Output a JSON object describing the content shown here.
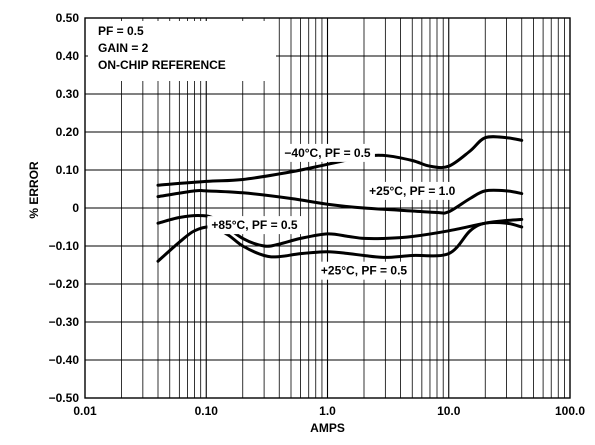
{
  "chart_data": {
    "type": "line",
    "xscale": "log",
    "xlim": [
      0.01,
      100.0
    ],
    "ylim": [
      -0.5,
      0.5
    ],
    "xlabel": "AMPS",
    "ylabel": "% ERROR",
    "grid": true,
    "x_tick_labels": [
      "0.01",
      "0.10",
      "1.0",
      "10.0",
      "100.0"
    ],
    "x_tick_values": [
      0.01,
      0.1,
      1,
      10,
      100
    ],
    "y_tick_labels": [
      "0.50",
      "0.40",
      "0.30",
      "0.20",
      "0.10",
      "0",
      "−0.10",
      "−0.20",
      "−0.30",
      "−0.40",
      "−0.50"
    ],
    "y_tick_values": [
      0.5,
      0.4,
      0.3,
      0.2,
      0.1,
      0,
      -0.1,
      -0.2,
      -0.3,
      -0.4,
      -0.5
    ],
    "notes": [
      "PF = 0.5",
      "GAIN = 2",
      "ON-CHIP REFERENCE"
    ],
    "series": [
      {
        "name": "−40°C, PF = 0.5",
        "x": [
          0.04,
          0.1,
          0.2,
          0.5,
          1.0,
          2.0,
          3.0,
          5.0,
          7.0,
          10.0,
          15.0,
          20.0,
          30.0,
          40.0
        ],
        "y": [
          0.06,
          0.07,
          0.075,
          0.095,
          0.115,
          0.135,
          0.138,
          0.125,
          0.11,
          0.11,
          0.15,
          0.185,
          0.185,
          0.178
        ]
      },
      {
        "name": "+25°C, PF = 1.0",
        "x": [
          0.04,
          0.08,
          0.1,
          0.2,
          0.5,
          1.0,
          2.0,
          5.0,
          8.0,
          10.0,
          15.0,
          20.0,
          30.0,
          40.0
        ],
        "y": [
          0.03,
          0.045,
          0.045,
          0.04,
          0.025,
          0.01,
          0.0,
          -0.008,
          -0.012,
          -0.01,
          0.025,
          0.045,
          0.045,
          0.038
        ]
      },
      {
        "name": "+85°C, PF = 0.5",
        "x": [
          0.04,
          0.06,
          0.09,
          0.12,
          0.2,
          0.3,
          0.4,
          0.6,
          1.0,
          1.5,
          2.0,
          3.0,
          5.0,
          10.0,
          20.0,
          30.0,
          40.0
        ],
        "y": [
          -0.04,
          -0.025,
          -0.02,
          -0.03,
          -0.08,
          -0.1,
          -0.095,
          -0.08,
          -0.068,
          -0.075,
          -0.08,
          -0.08,
          -0.075,
          -0.06,
          -0.04,
          -0.033,
          -0.03
        ]
      },
      {
        "name": "+25°C, PF = 0.5",
        "x": [
          0.04,
          0.06,
          0.08,
          0.11,
          0.15,
          0.2,
          0.3,
          0.4,
          0.6,
          1.0,
          1.5,
          2.0,
          3.0,
          5.0,
          10.0,
          15.0,
          20.0,
          30.0,
          40.0
        ],
        "y": [
          -0.14,
          -0.09,
          -0.06,
          -0.05,
          -0.07,
          -0.1,
          -0.125,
          -0.128,
          -0.12,
          -0.115,
          -0.12,
          -0.125,
          -0.13,
          -0.125,
          -0.12,
          -0.06,
          -0.04,
          -0.04,
          -0.05
        ]
      }
    ],
    "series_labels": [
      {
        "text": "−40°C, PF = 0.5",
        "x": 1.0,
        "y": 0.145
      },
      {
        "text": "+25°C, PF = 1.0",
        "x": 5.0,
        "y": 0.045
      },
      {
        "text": "+85°C, PF = 0.5",
        "x": 0.25,
        "y": -0.045
      },
      {
        "text": "+25°C, PF = 0.5",
        "x": 2.0,
        "y": -0.165
      }
    ]
  }
}
